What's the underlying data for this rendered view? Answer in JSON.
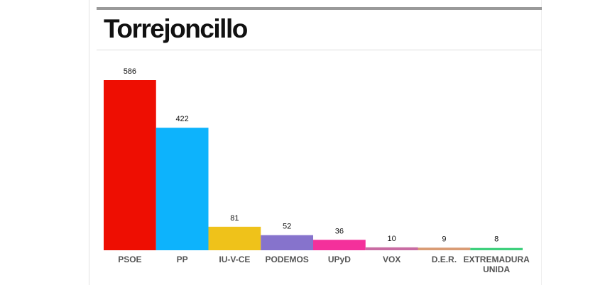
{
  "title": "Torrejoncillo",
  "chart_data": {
    "type": "bar",
    "title": "Torrejoncillo",
    "xlabel": "",
    "ylabel": "",
    "ylim": [
      0,
      586
    ],
    "grid": false,
    "legend": "none",
    "categories": [
      "PSOE",
      "PP",
      "IU-V-CE",
      "PODEMOS",
      "UPyD",
      "VOX",
      "D.E.R.",
      "EXTREMADURA UNIDA"
    ],
    "category_lines": [
      [
        "PSOE"
      ],
      [
        "PP"
      ],
      [
        "IU-V-CE"
      ],
      [
        "PODEMOS"
      ],
      [
        "UPyD"
      ],
      [
        "VOX"
      ],
      [
        "D.E.R."
      ],
      [
        "EXTREMADURA",
        "UNIDA"
      ]
    ],
    "values": [
      586,
      422,
      81,
      52,
      36,
      10,
      9,
      8
    ],
    "colors": [
      "#ee0e02",
      "#0db3fc",
      "#efc21a",
      "#8673cc",
      "#f4309b",
      "#c86ba2",
      "#d99c75",
      "#3fd07d"
    ]
  }
}
